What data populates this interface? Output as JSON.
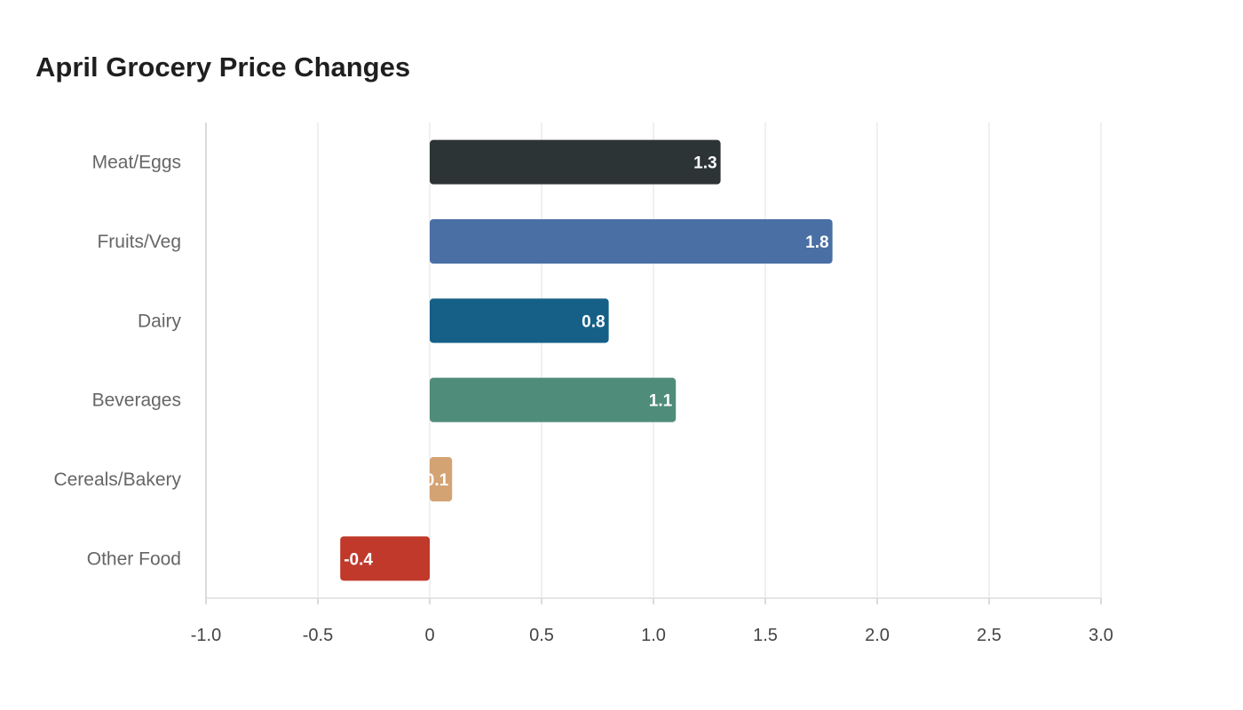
{
  "chart_data": {
    "type": "bar",
    "orientation": "horizontal",
    "title": "April Grocery Price Changes",
    "xlabel": "",
    "ylabel": "",
    "categories": [
      "Meat/Eggs",
      "Fruits/Veg",
      "Dairy",
      "Beverages",
      "Cereals/Bakery",
      "Other Food"
    ],
    "values": [
      1.3,
      1.8,
      0.8,
      1.1,
      0.1,
      -0.4
    ],
    "colors": [
      "#2d3436",
      "#4a6fa5",
      "#166088",
      "#4f8c7a",
      "#d4a373",
      "#c0392b"
    ],
    "xlim": [
      -1.0,
      3.0
    ],
    "xticks": [
      "-1.0",
      "-0.5",
      "0",
      "0.5",
      "1.0",
      "1.5",
      "2.0",
      "2.5",
      "3.0"
    ],
    "grid": "vertical",
    "legend": "none"
  }
}
